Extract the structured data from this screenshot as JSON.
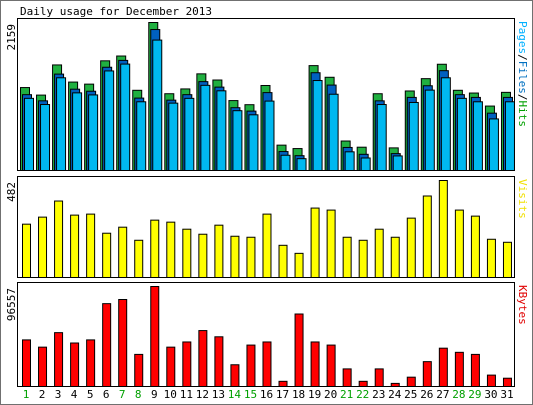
{
  "chart_data": {
    "type": "bar",
    "title": "Daily usage for December 2013",
    "categories": [
      "1",
      "2",
      "3",
      "4",
      "5",
      "6",
      "7",
      "8",
      "9",
      "10",
      "11",
      "12",
      "13",
      "14",
      "15",
      "16",
      "17",
      "18",
      "19",
      "20",
      "21",
      "22",
      "23",
      "24",
      "25",
      "26",
      "27",
      "28",
      "29",
      "30",
      "31"
    ],
    "weekend_days": [
      "1",
      "7",
      "8",
      "14",
      "15",
      "21",
      "22",
      "28",
      "29"
    ],
    "panels": [
      {
        "id": "pages-files-hits",
        "max_label": "2159",
        "ylim": [
          0,
          2159
        ],
        "legend": [
          {
            "text": "Pages",
            "color": "#00b0ff"
          },
          {
            "text": "/",
            "color": "#000000"
          },
          {
            "text": "Files",
            "color": "#0070c0"
          },
          {
            "text": "/",
            "color": "#000000"
          },
          {
            "text": "Hits",
            "color": "#00a000"
          }
        ],
        "series": [
          {
            "name": "Hits",
            "color": "#20b040",
            "values": [
              1210,
              1100,
              1540,
              1290,
              1260,
              1600,
              1670,
              1170,
              2159,
              1120,
              1190,
              1410,
              1320,
              1020,
              960,
              1240,
              370,
              320,
              1530,
              1360,
              430,
              340,
              1120,
              330,
              1160,
              1340,
              1550,
              1170,
              1130,
              940,
              1140
            ]
          },
          {
            "name": "Files",
            "color": "#0060c0",
            "values": [
              1150,
              1060,
              1450,
              1230,
              1200,
              1550,
              1650,
              1100,
              2100,
              1070,
              1150,
              1340,
              1260,
              960,
              910,
              1180,
              320,
              260,
              1470,
              1290,
              380,
              280,
              1060,
              290,
              1110,
              1280,
              1500,
              1150,
              1110,
              880,
              1110
            ]
          },
          {
            "name": "Pages",
            "color": "#00b8f0",
            "values": [
              1140,
              1050,
              1440,
              1220,
              1190,
              1540,
              1640,
              1090,
              1990,
              1070,
              1140,
              1330,
              1250,
              960,
              900,
              1100,
              310,
              260,
              1400,
              1200,
              360,
              270,
              1050,
              300,
              1080,
              1260,
              1440,
              1140,
              1090,
              840,
              1090
            ]
          }
        ]
      },
      {
        "id": "visits",
        "max_label": "482",
        "ylim": [
          0,
          482
        ],
        "legend": [
          {
            "text": "Visits",
            "color": "#f0e000"
          }
        ],
        "series": [
          {
            "name": "Visits",
            "color": "#ffff00",
            "values": [
              265,
              300,
              380,
              310,
              315,
              220,
              250,
              185,
              285,
              275,
              240,
              215,
              260,
              205,
              200,
              315,
              160,
              120,
              345,
              335,
              200,
              185,
              240,
              200,
              295,
              405,
              482,
              335,
              305,
              190,
              175
            ]
          }
        ]
      },
      {
        "id": "kbytes",
        "max_label": "96557",
        "ylim": [
          0,
          96557
        ],
        "legend": [
          {
            "text": "KBytes",
            "color": "#e00000"
          }
        ],
        "series": [
          {
            "name": "KBytes",
            "color": "#ff0000",
            "values": [
              45000,
              38000,
              52000,
              42000,
              45000,
              80000,
              84000,
              31000,
              96557,
              38000,
              43000,
              54000,
              48000,
              21000,
              40000,
              43000,
              5000,
              70000,
              43000,
              40000,
              17000,
              5000,
              17000,
              3000,
              9000,
              24000,
              37000,
              33000,
              31000,
              11000,
              8000
            ]
          }
        ]
      }
    ]
  }
}
